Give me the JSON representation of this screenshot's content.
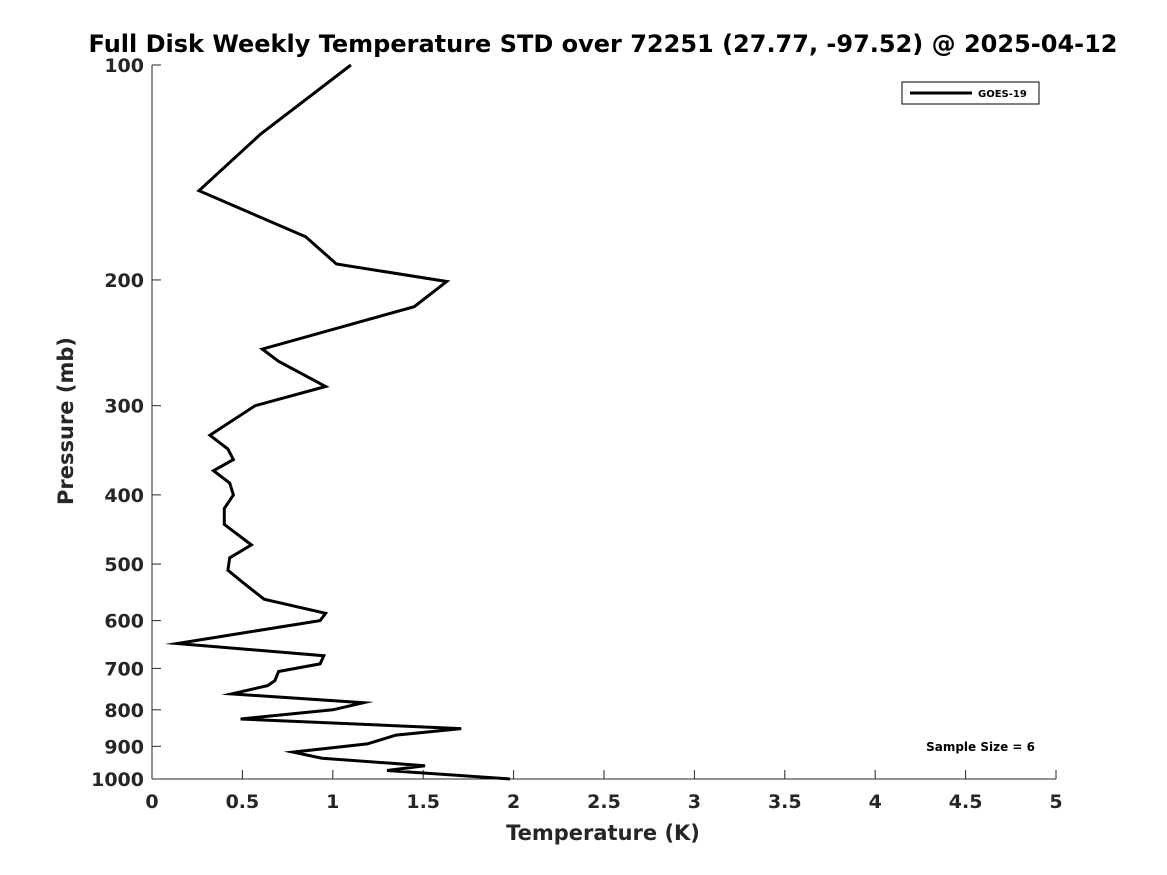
{
  "chart_data": {
    "type": "line",
    "title": "Full Disk Weekly Temperature STD over 72251 (27.77, -97.52) @ 2025-04-12",
    "xlabel": "Temperature (K)",
    "ylabel": "Pressure (mb)",
    "xlim": [
      0,
      5
    ],
    "ylim": [
      100,
      1000
    ],
    "yscale": "log",
    "y_reversed": true,
    "grid": false,
    "x_ticks": [
      "0",
      "0.5",
      "1",
      "1.5",
      "2",
      "2.5",
      "3",
      "3.5",
      "4",
      "4.5",
      "5"
    ],
    "y_ticks": [
      "100",
      "200",
      "300",
      "400",
      "500",
      "600",
      "700",
      "800",
      "900",
      "1000"
    ],
    "legend": {
      "location": "top-right",
      "entries": [
        "GOES-19"
      ]
    },
    "annotation": "Sample Size = 6",
    "series": [
      {
        "name": "GOES-19",
        "color": "#000000",
        "points": [
          [
            1.1,
            100
          ],
          [
            0.6,
            125
          ],
          [
            0.26,
            150
          ],
          [
            0.85,
            174
          ],
          [
            1.02,
            190
          ],
          [
            1.63,
            201
          ],
          [
            1.45,
            218
          ],
          [
            0.61,
            250
          ],
          [
            0.7,
            260
          ],
          [
            0.96,
            282
          ],
          [
            0.57,
            300
          ],
          [
            0.32,
            330
          ],
          [
            0.42,
            345
          ],
          [
            0.45,
            357
          ],
          [
            0.34,
            370
          ],
          [
            0.43,
            385
          ],
          [
            0.45,
            400
          ],
          [
            0.4,
            418
          ],
          [
            0.4,
            440
          ],
          [
            0.55,
            470
          ],
          [
            0.43,
            490
          ],
          [
            0.42,
            510
          ],
          [
            0.5,
            530
          ],
          [
            0.62,
            560
          ],
          [
            0.96,
            586
          ],
          [
            0.93,
            600
          ],
          [
            0.14,
            646
          ],
          [
            0.95,
            672
          ],
          [
            0.93,
            690
          ],
          [
            0.7,
            707
          ],
          [
            0.68,
            728
          ],
          [
            0.64,
            740
          ],
          [
            0.44,
            760
          ],
          [
            1.17,
            782
          ],
          [
            1.0,
            800
          ],
          [
            0.49,
            824
          ],
          [
            1.71,
            850
          ],
          [
            1.35,
            868
          ],
          [
            1.19,
            893
          ],
          [
            0.78,
            917
          ],
          [
            0.94,
            935
          ],
          [
            1.51,
            958
          ],
          [
            1.3,
            973
          ],
          [
            1.98,
            1000
          ]
        ]
      }
    ]
  }
}
